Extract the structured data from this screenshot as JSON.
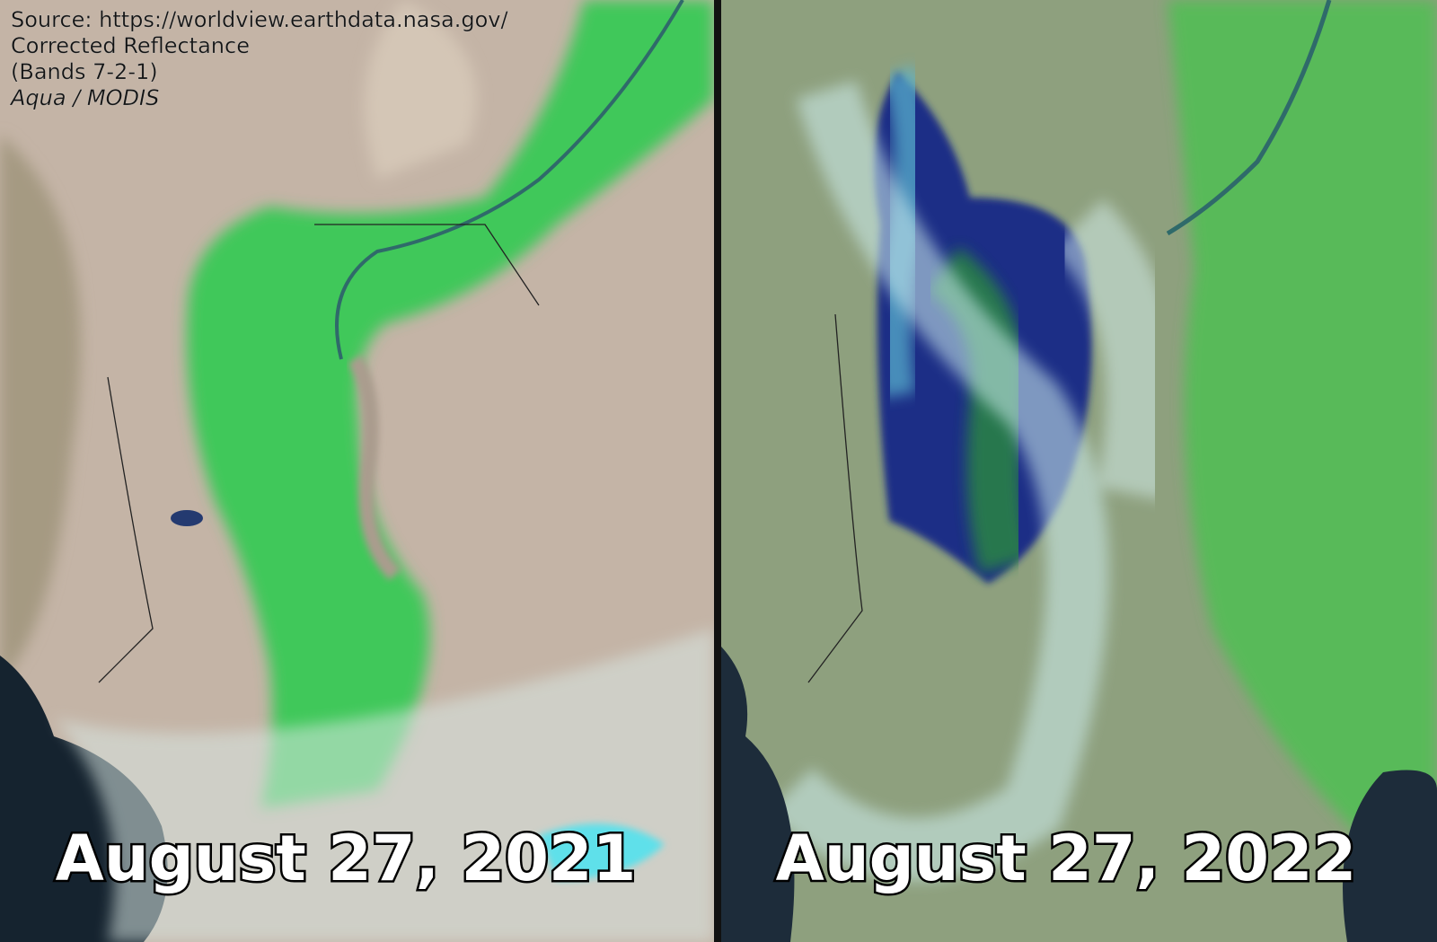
{
  "source": {
    "lines": [
      "Source: https://worldview.earthdata.nasa.gov/",
      "Corrected Reflectance",
      "(Bands 7-2-1)",
      "Aqua / MODIS"
    ]
  },
  "panels": [
    {
      "date": "August 27, 2021"
    },
    {
      "date": "August 27, 2022"
    }
  ]
}
